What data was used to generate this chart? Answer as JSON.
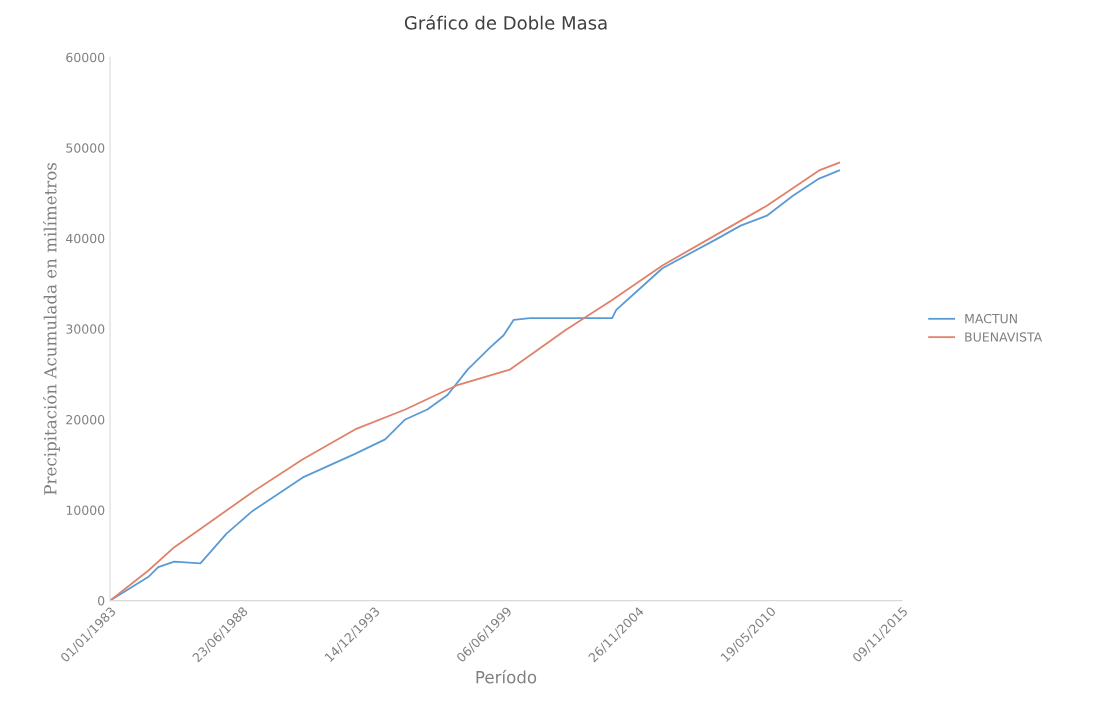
{
  "chart_data": {
    "type": "line",
    "title": "Gráfico de Doble Masa",
    "xlabel": "Período",
    "ylabel": "Precipitación Acumulada en milímetros",
    "xlim": [
      "1983-01-01",
      "2015-11-09"
    ],
    "xticks": [
      {
        "value": "1983-01-01",
        "label": "01/01/1983"
      },
      {
        "value": "1988-06-23",
        "label": "23/06/1988"
      },
      {
        "value": "1993-12-14",
        "label": "14/12/1993"
      },
      {
        "value": "1999-06-06",
        "label": "06/06/1999"
      },
      {
        "value": "2004-11-26",
        "label": "26/11/2004"
      },
      {
        "value": "2010-05-19",
        "label": "19/05/2010"
      },
      {
        "value": "2015-11-09",
        "label": "09/11/2015"
      }
    ],
    "ylim": [
      0,
      60000
    ],
    "yticks": [
      0,
      10000,
      20000,
      30000,
      40000,
      50000,
      60000
    ],
    "grid": false,
    "legend": "right",
    "series": [
      {
        "name": "MACTUN",
        "color": "#5b9bd5",
        "x": [
          "1983-01",
          "1984-08",
          "1985-01",
          "1985-09",
          "1986-10",
          "1986-12",
          "1987-11",
          "1988-12",
          "1991-01",
          "1993-03",
          "1994-06",
          "1995-04",
          "1996-03",
          "1997-01",
          "1997-11",
          "1998-10",
          "1999-05",
          "1999-10",
          "2000-06",
          "2003-11",
          "2004-01",
          "2004-12",
          "2005-12",
          "2008-02",
          "2009-03",
          "2010-04",
          "2011-05",
          "2012-06",
          "2013-04"
        ],
        "values": [
          0,
          2600,
          3700,
          4300,
          4100,
          4600,
          7400,
          9900,
          13600,
          16200,
          17800,
          20000,
          21100,
          22700,
          25500,
          27900,
          29300,
          31000,
          31200,
          31200,
          32100,
          34300,
          36700,
          39800,
          41400,
          42500,
          44700,
          46600,
          47500
        ]
      },
      {
        "name": "BUENAVISTA",
        "color": "#e0826a",
        "x": [
          "1983-01",
          "1984-08",
          "1985-09",
          "1986-10",
          "1988-12",
          "1991-01",
          "1993-03",
          "1995-04",
          "1997-06",
          "1999-08",
          "2001-12",
          "2003-11",
          "2005-12",
          "2008-02",
          "2010-04",
          "2012-06",
          "2013-04"
        ],
        "values": [
          0,
          3300,
          5900,
          7900,
          12000,
          15600,
          18900,
          21100,
          23800,
          25500,
          29900,
          33200,
          37000,
          40300,
          43600,
          47500,
          48350
        ]
      }
    ]
  }
}
